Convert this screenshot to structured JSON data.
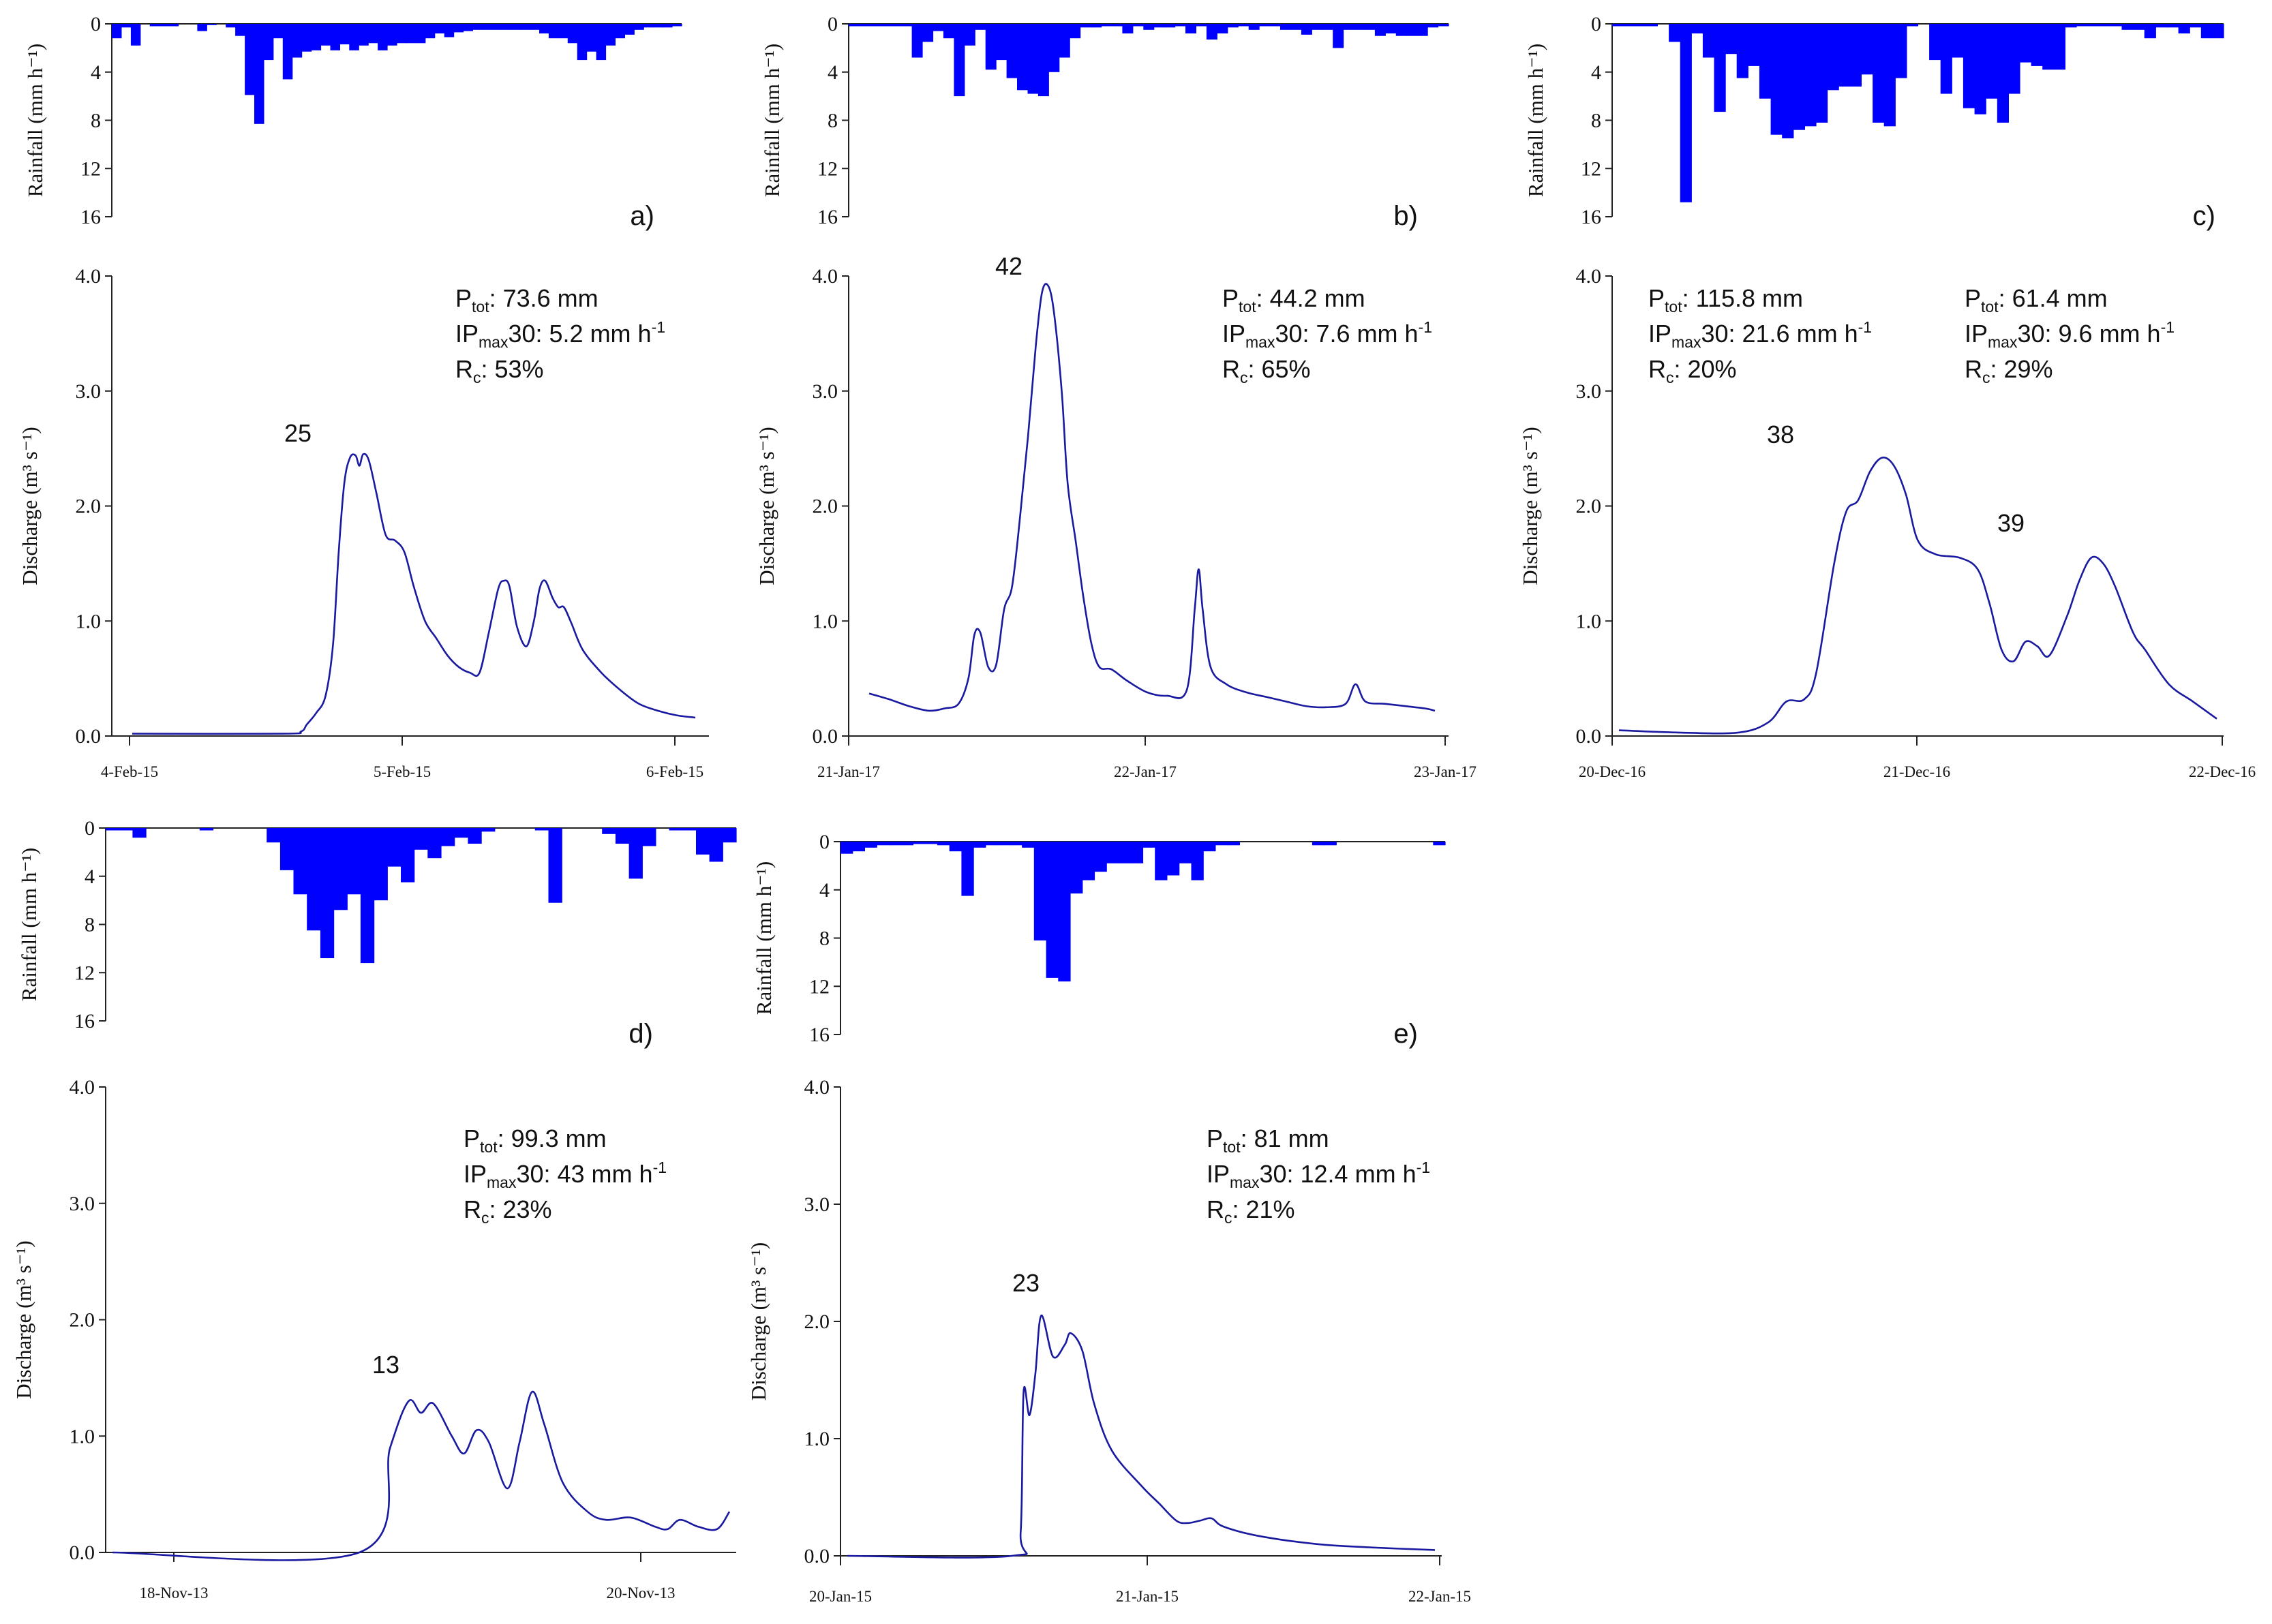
{
  "chart_data": [
    {
      "id": "a",
      "type": "bar+line",
      "panel_label": "a)",
      "rain_ylabel": "Rainfall (mm h⁻¹)",
      "q_ylabel": "Discharge (m³ s⁻¹)",
      "rain_ylim": [
        0,
        16
      ],
      "rain_yticks": [
        "0",
        "4",
        "8",
        "12",
        "16"
      ],
      "q_ylim": [
        0,
        4
      ],
      "q_yticks": [
        "0.0",
        "1.0",
        "2.0",
        "3.0",
        "4.0"
      ],
      "xticks": [
        "4-Feb-15",
        "5-Feb-15",
        "6-Feb-15"
      ],
      "xlim_days": [
        -0.06,
        2.0
      ],
      "rain_step_hours": 1,
      "rain": [
        1.2,
        0.3,
        1.8,
        0,
        0.2,
        0.2,
        0.2,
        0,
        0,
        0.6,
        0.1,
        0,
        0.3,
        1.0,
        5.9,
        8.3,
        3.0,
        1.2,
        4.6,
        2.8,
        2.3,
        2.2,
        1.8,
        2.2,
        1.7,
        2.2,
        1.8,
        1.6,
        2.2,
        1.8,
        1.6,
        1.6,
        1.6,
        1.2,
        0.8,
        1.1,
        0.7,
        0.6,
        0.5,
        0.5,
        0.5,
        0.5,
        0.5,
        0.5,
        0.5,
        0.8,
        1.2,
        1.2,
        1.6,
        3.0,
        2.3,
        3.0,
        1.8,
        1.2,
        0.9,
        0.5,
        0.3,
        0.3,
        0.3,
        0.2
      ],
      "discharge": [
        [
          0,
          0.02
        ],
        [
          0.8,
          0.02
        ],
        [
          0.9,
          0.04
        ],
        [
          0.93,
          0.1
        ],
        [
          0.98,
          0.2
        ],
        [
          1.03,
          0.35
        ],
        [
          1.07,
          0.8
        ],
        [
          1.1,
          1.6
        ],
        [
          1.13,
          2.2
        ],
        [
          1.16,
          2.42
        ],
        [
          1.19,
          2.44
        ],
        [
          1.21,
          2.35
        ],
        [
          1.23,
          2.45
        ],
        [
          1.26,
          2.4
        ],
        [
          1.3,
          2.12
        ],
        [
          1.35,
          1.75
        ],
        [
          1.4,
          1.7
        ],
        [
          1.45,
          1.6
        ],
        [
          1.5,
          1.3
        ],
        [
          1.56,
          1.0
        ],
        [
          1.62,
          0.85
        ],
        [
          1.68,
          0.7
        ],
        [
          1.74,
          0.6
        ],
        [
          1.8,
          0.55
        ],
        [
          1.85,
          0.55
        ],
        [
          1.9,
          0.9
        ],
        [
          1.95,
          1.28
        ],
        [
          1.98,
          1.35
        ],
        [
          2.01,
          1.3
        ],
        [
          2.05,
          0.95
        ],
        [
          2.1,
          0.78
        ],
        [
          2.14,
          1.0
        ],
        [
          2.17,
          1.28
        ],
        [
          2.2,
          1.35
        ],
        [
          2.24,
          1.2
        ],
        [
          2.27,
          1.12
        ],
        [
          2.3,
          1.12
        ],
        [
          2.34,
          0.98
        ],
        [
          2.4,
          0.75
        ],
        [
          2.5,
          0.55
        ],
        [
          2.6,
          0.4
        ],
        [
          2.7,
          0.28
        ],
        [
          2.8,
          0.22
        ],
        [
          2.9,
          0.18
        ],
        [
          3.0,
          0.16
        ]
      ],
      "discharge_time_unit": "relative",
      "peak_label": "25",
      "info": [
        {
          "P_tot": "73.6 mm",
          "IP_max30": "5.2 mm h-1",
          "R_c": "53%"
        }
      ]
    },
    {
      "id": "b",
      "type": "bar+line",
      "panel_label": "b)",
      "rain_ylabel": "Rainfall (mm h⁻¹)",
      "q_ylabel": "Discharge (m³ s⁻¹)",
      "rain_ylim": [
        0,
        16
      ],
      "rain_yticks": [
        "0",
        "4",
        "8",
        "12",
        "16"
      ],
      "q_ylim": [
        0,
        4
      ],
      "q_yticks": [
        "0.0",
        "1.0",
        "2.0",
        "3.0",
        "4.0"
      ],
      "xticks": [
        "21-Jan-17",
        "22-Jan-17",
        "23-Jan-17"
      ],
      "peak_label": "42",
      "info": [
        {
          "P_tot": "44.2 mm",
          "IP_max30": "7.6 mm h-1",
          "R_c": "65%"
        }
      ],
      "rain": [
        0.2,
        0.2,
        0.2,
        0.2,
        0.2,
        0.2,
        2.8,
        1.5,
        0.6,
        1.2,
        6.0,
        1.8,
        0.5,
        3.8,
        3.0,
        4.5,
        5.5,
        5.8,
        6.0,
        4.0,
        2.8,
        1.2,
        0.3,
        0.3,
        0.2,
        0.2,
        0.8,
        0.2,
        0.5,
        0.3,
        0.3,
        0.2,
        0.8,
        0.2,
        1.3,
        0.8,
        0.3,
        0.2,
        0.5,
        0.2,
        0.2,
        0.5,
        0.5,
        0.9,
        0.5,
        0.5,
        2.0,
        0.5,
        0.5,
        0.5,
        1.0,
        0.8,
        1.0,
        1.0,
        1.0,
        0.3,
        0.2
      ],
      "discharge": [
        [
          0,
          0.37
        ],
        [
          0.1,
          0.32
        ],
        [
          0.2,
          0.26
        ],
        [
          0.3,
          0.22
        ],
        [
          0.38,
          0.24
        ],
        [
          0.45,
          0.28
        ],
        [
          0.5,
          0.5
        ],
        [
          0.53,
          0.88
        ],
        [
          0.56,
          0.9
        ],
        [
          0.6,
          0.6
        ],
        [
          0.64,
          0.62
        ],
        [
          0.68,
          1.1
        ],
        [
          0.72,
          1.3
        ],
        [
          0.76,
          1.9
        ],
        [
          0.8,
          2.6
        ],
        [
          0.84,
          3.4
        ],
        [
          0.87,
          3.85
        ],
        [
          0.9,
          3.92
        ],
        [
          0.93,
          3.7
        ],
        [
          0.97,
          3.0
        ],
        [
          1.0,
          2.2
        ],
        [
          1.04,
          1.7
        ],
        [
          1.08,
          1.2
        ],
        [
          1.12,
          0.8
        ],
        [
          1.16,
          0.6
        ],
        [
          1.22,
          0.58
        ],
        [
          1.3,
          0.48
        ],
        [
          1.4,
          0.38
        ],
        [
          1.5,
          0.35
        ],
        [
          1.6,
          0.4
        ],
        [
          1.64,
          1.1
        ],
        [
          1.66,
          1.45
        ],
        [
          1.68,
          1.1
        ],
        [
          1.72,
          0.6
        ],
        [
          1.8,
          0.45
        ],
        [
          1.9,
          0.38
        ],
        [
          2.0,
          0.34
        ],
        [
          2.1,
          0.3
        ],
        [
          2.2,
          0.26
        ],
        [
          2.3,
          0.25
        ],
        [
          2.4,
          0.28
        ],
        [
          2.45,
          0.45
        ],
        [
          2.5,
          0.3
        ],
        [
          2.6,
          0.28
        ],
        [
          2.7,
          0.26
        ],
        [
          2.8,
          0.24
        ],
        [
          2.85,
          0.22
        ]
      ],
      "discharge_time_unit": "relative"
    },
    {
      "id": "c",
      "type": "bar+line",
      "panel_label": "c)",
      "rain_ylabel": "Rainfall (mm h⁻¹)",
      "q_ylabel": "Discharge (m³ s⁻¹)",
      "rain_ylim": [
        0,
        16
      ],
      "rain_yticks": [
        "0",
        "4",
        "8",
        "12",
        "16"
      ],
      "q_ylim": [
        0,
        4
      ],
      "q_yticks": [
        "0.0",
        "1.0",
        "2.0",
        "3.0",
        "4.0"
      ],
      "xticks": [
        "20-Dec-16",
        "21-Dec-16",
        "22-Dec-16"
      ],
      "peak_labels": [
        "38",
        "39"
      ],
      "info": [
        {
          "P_tot": "115.8 mm",
          "IP_max30": "21.6 mm h-1",
          "R_c": "20%"
        },
        {
          "P_tot": "61.4 mm",
          "IP_max30": "9.6 mm h-1",
          "R_c": "29%"
        }
      ],
      "rain": [
        0.2,
        0.2,
        0.2,
        0.2,
        0,
        1.5,
        14.8,
        0.8,
        2.8,
        7.3,
        2.5,
        4.5,
        3.5,
        6.2,
        9.2,
        9.5,
        8.8,
        8.5,
        8.2,
        5.5,
        5.2,
        5.2,
        4.2,
        8.2,
        8.5,
        4.5,
        0.2,
        0,
        3.0,
        5.8,
        2.8,
        7.0,
        7.5,
        6.2,
        8.2,
        5.8,
        3.2,
        3.5,
        3.8,
        3.8,
        0.3,
        0.2,
        0.2,
        0.2,
        0.2,
        0.5,
        0.5,
        1.2,
        0.3,
        0.3,
        0.8,
        0.3,
        1.2,
        1.2
      ]
    },
    {
      "id": "d",
      "type": "bar+line",
      "panel_label": "d)",
      "rain_ylabel": "Rainfall (mm h⁻¹)",
      "q_ylabel": "Discharge (m³ s⁻¹)",
      "rain_ylim": [
        0,
        16
      ],
      "rain_yticks": [
        "0",
        "4",
        "8",
        "12",
        "16"
      ],
      "q_ylim": [
        0,
        4
      ],
      "q_yticks": [
        "0.0",
        "1.0",
        "2.0",
        "3.0",
        "4.0"
      ],
      "xticks": [
        "18-Nov-13",
        "20-Nov-13"
      ],
      "peak_label": "13",
      "info": [
        {
          "P_tot": "99.3 mm",
          "IP_max30": "43 mm h-1",
          "R_c": "23%"
        }
      ],
      "rain": [
        0.2,
        0.2,
        0.8,
        0,
        0,
        0,
        0,
        0.2,
        0,
        0,
        0,
        0,
        1.2,
        3.5,
        5.5,
        8.5,
        10.8,
        6.8,
        5.5,
        11.2,
        6.0,
        3.2,
        4.5,
        1.8,
        2.5,
        1.5,
        0.8,
        1.3,
        0.3,
        0,
        0,
        0,
        0.2,
        6.2,
        0,
        0,
        0,
        0.5,
        1.3,
        4.2,
        1.5,
        0,
        0.2,
        0.2,
        2.2,
        2.8,
        1.2
      ]
    },
    {
      "id": "e",
      "type": "bar+line",
      "panel_label": "e)",
      "rain_ylabel": "Rainfall (mm h⁻¹)",
      "q_ylabel": "Discharge (m³ s⁻¹)",
      "rain_ylim": [
        0,
        16
      ],
      "rain_yticks": [
        "0",
        "4",
        "8",
        "12",
        "16"
      ],
      "q_ylim": [
        0,
        4
      ],
      "q_yticks": [
        "0.0",
        "1.0",
        "2.0",
        "3.0",
        "4.0"
      ],
      "xticks": [
        "20-Jan-15",
        "21-Jan-15",
        "22-Jan-15"
      ],
      "peak_label": "23",
      "info": [
        {
          "P_tot": "81 mm",
          "IP_max30": "12.4 mm h-1",
          "R_c": "21%"
        }
      ],
      "rain": [
        1.0,
        0.8,
        0.5,
        0.3,
        0.3,
        0.3,
        0.2,
        0.2,
        0.3,
        0.8,
        4.5,
        0.5,
        0.3,
        0.3,
        0.3,
        0.5,
        8.2,
        11.3,
        11.6,
        4.3,
        3.2,
        2.5,
        1.8,
        1.8,
        1.8,
        0.5,
        3.2,
        2.8,
        1.8,
        3.2,
        0.8,
        0.3,
        0.3,
        0,
        0,
        0,
        0,
        0,
        0,
        0.3,
        0.3,
        0,
        0,
        0,
        0,
        0,
        0,
        0,
        0,
        0.3
      ]
    }
  ]
}
